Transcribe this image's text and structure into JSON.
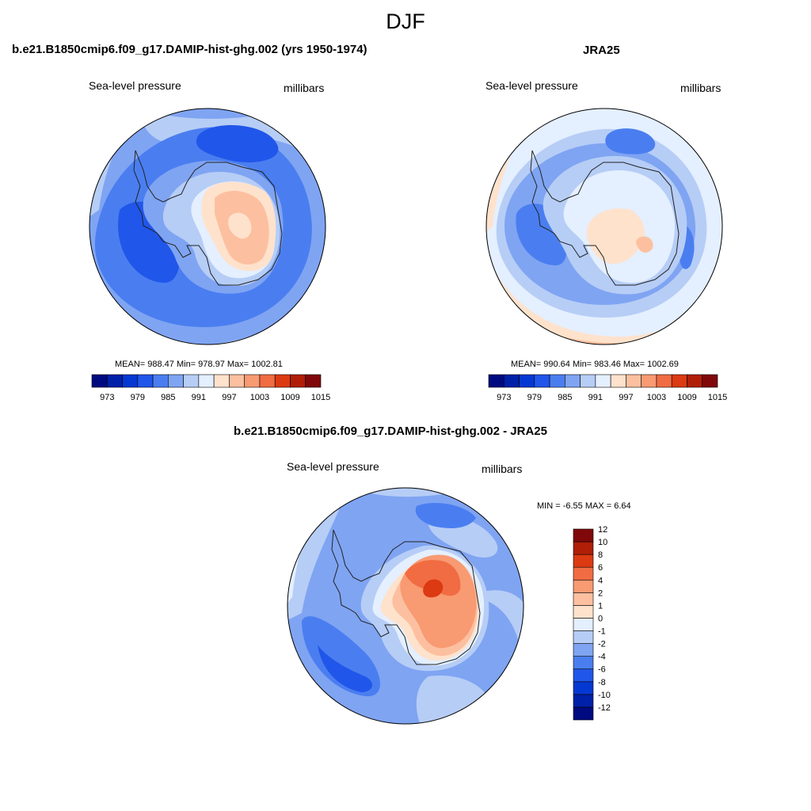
{
  "season": "DJF",
  "panels": {
    "model": {
      "title": "b.e21.B1850cmip6.f09_g17.DAMIP-hist-ghg.002 (yrs 1950-1974)",
      "left_label": "Sea-level pressure",
      "right_label": "millibars",
      "stats": "MEAN= 988.47  Min= 978.97  Max= 1002.81"
    },
    "obs": {
      "title": "JRA25",
      "left_label": "Sea-level pressure",
      "right_label": "millibars",
      "stats": "MEAN= 990.64  Min= 983.46  Max= 1002.69"
    },
    "diff": {
      "title": "b.e21.B1850cmip6.f09_g17.DAMIP-hist-ghg.002 - JRA25",
      "left_label": "Sea-level pressure",
      "right_label": "millibars",
      "stats": "MIN =  -6.55 MAX =   6.64"
    }
  },
  "colorbars": {
    "abs": {
      "colors": [
        "#000a80",
        "#0020a8",
        "#0538d2",
        "#2156ea",
        "#4a7ef0",
        "#7fa4f2",
        "#b6cdf6",
        "#e4efff",
        "#ffe2cc",
        "#fcc0a0",
        "#f89a72",
        "#f16c42",
        "#dc3a12",
        "#b01e08",
        "#80080a"
      ],
      "tick_labels": [
        "973",
        "979",
        "985",
        "991",
        "997",
        "1003",
        "1009",
        "1015"
      ]
    },
    "diff": {
      "colors": [
        "#000a80",
        "#0020a8",
        "#0538d2",
        "#2156ea",
        "#4a7ef0",
        "#7fa4f2",
        "#b6cdf6",
        "#e4efff",
        "#ffe2cc",
        "#fcc0a0",
        "#f89a72",
        "#f16c42",
        "#dc3a12",
        "#b01e08",
        "#80080a"
      ],
      "tick_labels": [
        "-12",
        "-10",
        "-8",
        "-6",
        "-4",
        "-2",
        "-1",
        "0",
        "1",
        "2",
        "4",
        "6",
        "8",
        "10",
        "12"
      ]
    }
  }
}
